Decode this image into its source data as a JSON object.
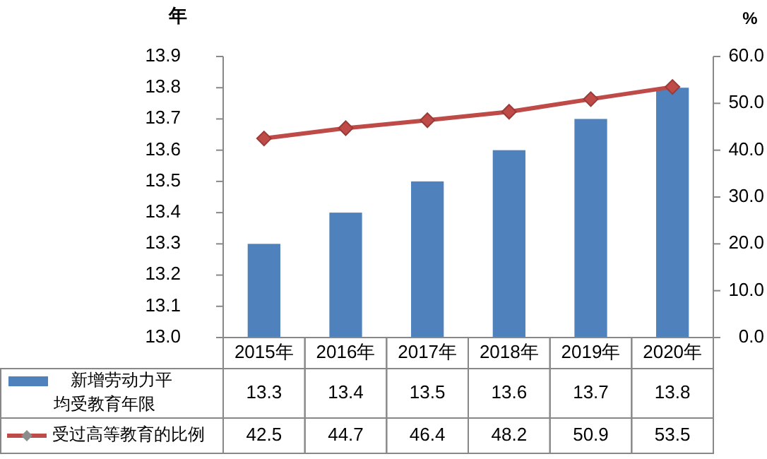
{
  "chart_data": {
    "type": "bar",
    "categories": [
      "2015年",
      "2016年",
      "2017年",
      "2018年",
      "2019年",
      "2020年"
    ],
    "ylabel": "年",
    "y2label": "%",
    "ylim": [
      13.0,
      13.9
    ],
    "yticks": [
      {
        "value": 13.0,
        "label": "13.0"
      },
      13.1,
      13.2,
      13.3,
      13.4,
      13.5,
      13.6,
      13.7,
      13.8,
      13.9
    ],
    "y2lim": [
      0,
      60
    ],
    "y2ticks": [
      {
        "value": 0,
        "label": "0.0"
      },
      {
        "value": 10,
        "label": "10.0"
      },
      {
        "value": 20,
        "label": "20.0"
      },
      {
        "value": 30,
        "label": "30.0"
      },
      {
        "value": 40,
        "label": "40.0"
      },
      {
        "value": 50,
        "label": "50.0"
      },
      {
        "value": 60,
        "label": "60.0"
      }
    ],
    "series": [
      {
        "name": "新增劳动力平均受教育年限",
        "color": "#4f81bd",
        "values": [
          13.3,
          13.4,
          13.5,
          13.6,
          13.7,
          13.8
        ]
      },
      {
        "name": "受过高等教育的比例",
        "type": "line",
        "axis": "y2",
        "color": "#be4b48",
        "marker": "diamond",
        "values": [
          42.5,
          44.7,
          46.4,
          48.2,
          50.9,
          53.5
        ]
      }
    ],
    "data_labels": true,
    "legend": "bottom",
    "grid": false
  }
}
